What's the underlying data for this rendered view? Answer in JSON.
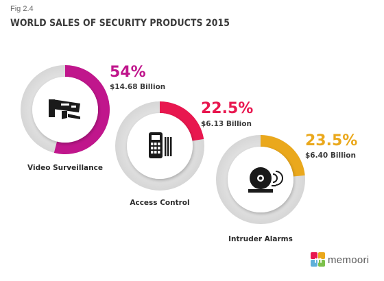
{
  "figure": {
    "fig_label": "Fig 2.4",
    "title": "WORLD SALES OF SECURITY PRODUCTS 2015"
  },
  "chart_data": {
    "type": "pie",
    "title": "WORLD SALES OF SECURITY PRODUCTS 2015",
    "unit": "Billion",
    "series": [
      {
        "name": "Video Surveillance",
        "value": 54,
        "percent_label": "54%",
        "amount_label": "$14.68 Billion",
        "amount": 14.68,
        "color": "#c0168c",
        "icon": "cctv-camera-icon"
      },
      {
        "name": "Access Control",
        "value": 22.5,
        "percent_label": "22.5%",
        "amount_label": "$6.13 Billion",
        "amount": 6.13,
        "color": "#e8174f",
        "icon": "keypad-reader-icon"
      },
      {
        "name": "Intruder Alarms",
        "value": 23.5,
        "percent_label": "23.5%",
        "amount_label": "$6.40 Billion",
        "amount": 6.4,
        "color": "#eaa81c",
        "icon": "alarm-bell-icon"
      }
    ]
  },
  "logo": {
    "text": "memoori",
    "colors": [
      "#e8174f",
      "#eaa81c",
      "#5fb0d9",
      "#7cc04b"
    ]
  }
}
